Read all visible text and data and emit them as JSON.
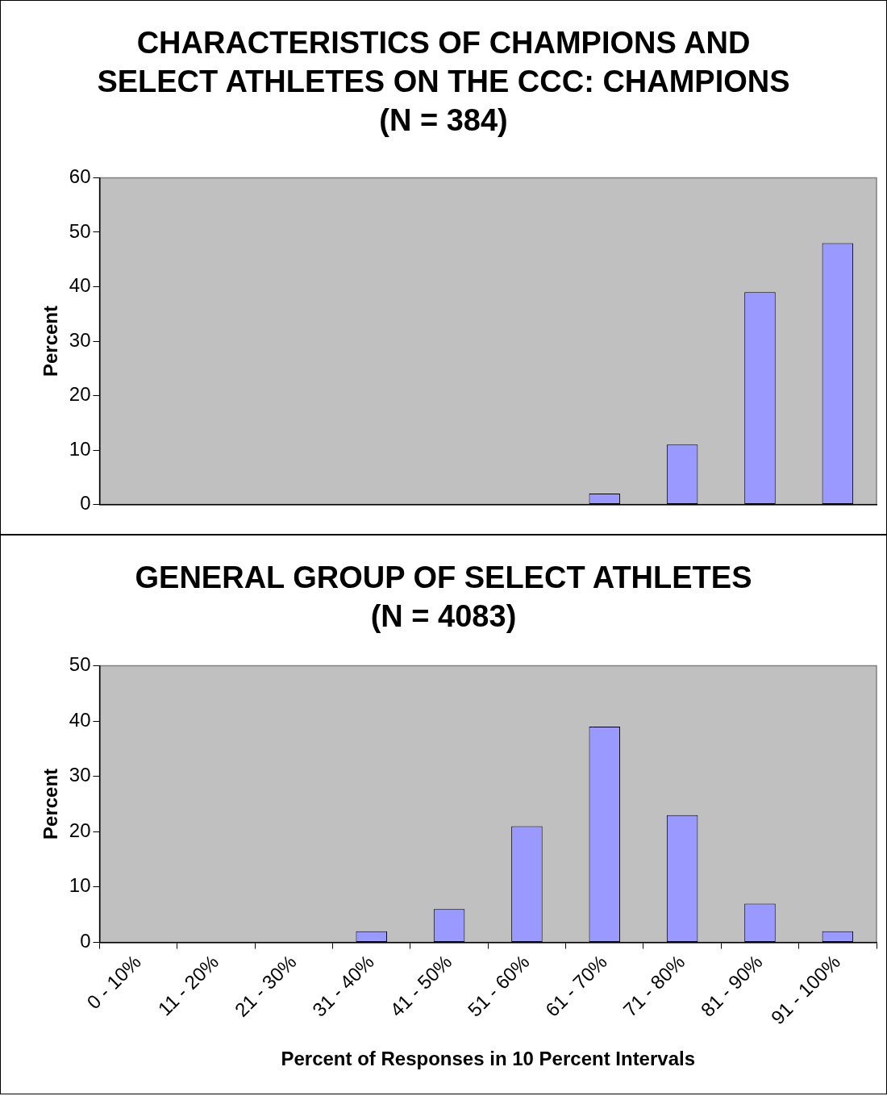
{
  "chart_data": [
    {
      "type": "bar",
      "title": "CHARACTERISTICS OF CHAMPIONS AND SELECT ATHLETES ON THE CCC: CHAMPIONS (N = 384)",
      "ylabel": "Percent",
      "categories": [
        null,
        null,
        null,
        null,
        null,
        null,
        null,
        null,
        null,
        null
      ],
      "values": [
        0,
        0,
        0,
        0,
        0,
        0,
        2,
        11,
        39,
        48
      ],
      "color": "#9999ff",
      "ylim": [
        0,
        60
      ],
      "yticks": [
        0,
        10,
        20,
        30,
        40,
        50,
        60
      ],
      "grid": false,
      "legend": false,
      "tick_labels": "y"
    },
    {
      "type": "bar",
      "title": "GENERAL GROUP OF SELECT ATHLETES (N = 4083)",
      "xlabel": "Percent of Responses in 10 Percent Intervals",
      "ylabel": "Percent",
      "categories": [
        "0 - 10%",
        "11 - 20%",
        "21 - 30%",
        "31 - 40%",
        "41 - 50%",
        "51 - 60%",
        "61 - 70%",
        "71 - 80%",
        "81 - 90%",
        "91 - 100%"
      ],
      "values": [
        0,
        0,
        0,
        2,
        6,
        21,
        39,
        23,
        7,
        2
      ],
      "color": "#9999ff",
      "ylim": [
        0,
        50
      ],
      "yticks": [
        0,
        10,
        20,
        30,
        40,
        50
      ],
      "grid": false,
      "legend": false
    }
  ]
}
